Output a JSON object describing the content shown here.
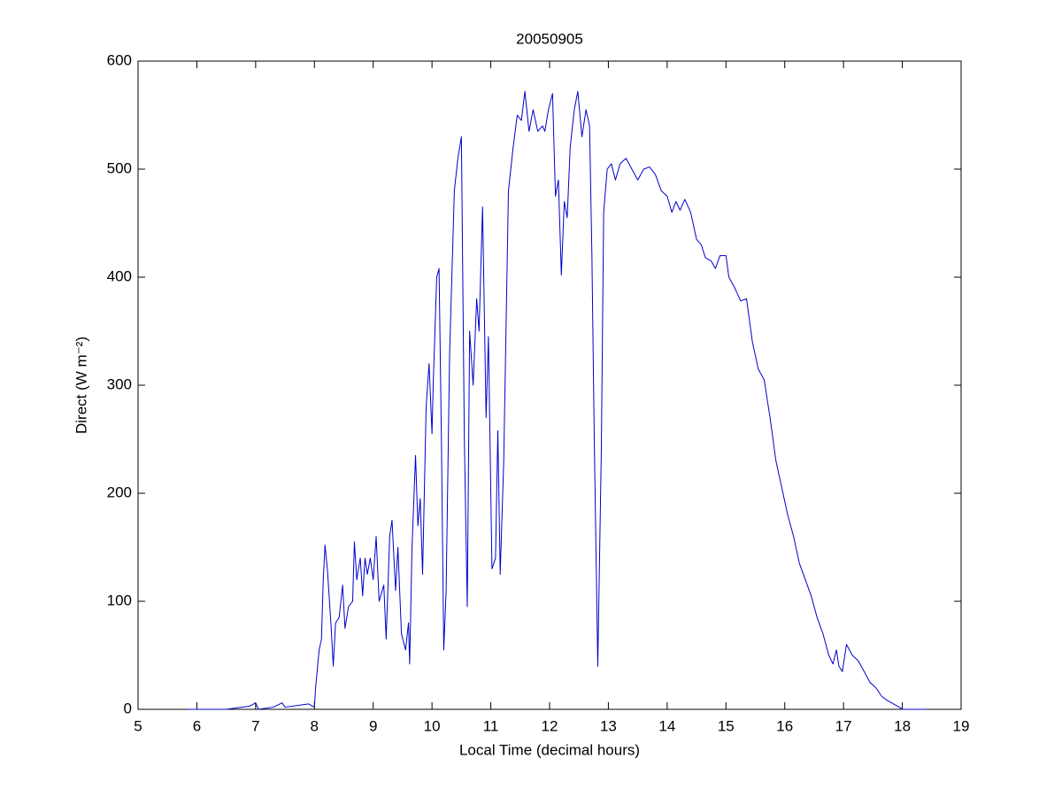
{
  "chart_data": {
    "type": "line",
    "title": "20050905",
    "xlabel": "Local Time (decimal hours)",
    "ylabel": "Direct (W m⁻²)",
    "xlim": [
      5,
      19
    ],
    "xticks": [
      5,
      6,
      7,
      8,
      9,
      10,
      11,
      12,
      13,
      14,
      15,
      16,
      17,
      18,
      19
    ],
    "ylim": [
      0,
      600
    ],
    "yticks": [
      0,
      100,
      200,
      300,
      400,
      500,
      600
    ],
    "grid": false,
    "x": [
      5.85,
      6.5,
      6.9,
      7.0,
      7.05,
      7.3,
      7.45,
      7.5,
      7.9,
      8.0,
      8.02,
      8.08,
      8.12,
      8.15,
      8.18,
      8.22,
      8.28,
      8.32,
      8.36,
      8.42,
      8.48,
      8.52,
      8.58,
      8.65,
      8.68,
      8.72,
      8.78,
      8.82,
      8.86,
      8.9,
      8.95,
      9.0,
      9.05,
      9.1,
      9.18,
      9.22,
      9.28,
      9.32,
      9.38,
      9.42,
      9.48,
      9.55,
      9.6,
      9.62,
      9.66,
      9.72,
      9.76,
      9.8,
      9.84,
      9.9,
      9.95,
      10.0,
      10.02,
      10.08,
      10.12,
      10.16,
      10.2,
      10.24,
      10.3,
      10.38,
      10.44,
      10.5,
      10.55,
      10.6,
      10.64,
      10.7,
      10.76,
      10.8,
      10.86,
      10.92,
      10.96,
      11.02,
      11.08,
      11.12,
      11.16,
      11.22,
      11.3,
      11.38,
      11.45,
      11.52,
      11.58,
      11.65,
      11.72,
      11.8,
      11.88,
      11.92,
      11.98,
      12.05,
      12.1,
      12.15,
      12.2,
      12.25,
      12.3,
      12.35,
      12.42,
      12.48,
      12.55,
      12.62,
      12.68,
      12.72,
      12.76,
      12.82,
      12.88,
      12.92,
      12.98,
      13.05,
      13.12,
      13.2,
      13.3,
      13.4,
      13.5,
      13.6,
      13.7,
      13.8,
      13.9,
      14.0,
      14.08,
      14.15,
      14.22,
      14.3,
      14.4,
      14.5,
      14.58,
      14.65,
      14.75,
      14.82,
      14.9,
      15.0,
      15.05,
      15.15,
      15.25,
      15.35,
      15.45,
      15.55,
      15.65,
      15.75,
      15.85,
      15.95,
      16.05,
      16.15,
      16.25,
      16.35,
      16.45,
      16.55,
      16.65,
      16.75,
      16.82,
      16.88,
      16.92,
      16.98,
      17.05,
      17.15,
      17.25,
      17.35,
      17.45,
      17.55,
      17.65,
      17.75,
      17.85,
      17.95,
      18.0,
      18.4
    ],
    "series": [
      {
        "color": "#0000cc",
        "values": [
          0,
          0,
          3,
          6,
          0,
          2,
          6,
          2,
          5,
          2,
          20,
          55,
          65,
          120,
          152,
          130,
          80,
          40,
          80,
          85,
          115,
          75,
          95,
          100,
          155,
          120,
          140,
          105,
          140,
          125,
          140,
          120,
          160,
          100,
          115,
          65,
          160,
          175,
          110,
          150,
          70,
          55,
          80,
          42,
          150,
          235,
          170,
          195,
          125,
          280,
          320,
          255,
          300,
          400,
          408,
          250,
          55,
          110,
          330,
          480,
          510,
          530,
          250,
          95,
          350,
          300,
          380,
          350,
          465,
          270,
          345,
          130,
          140,
          258,
          125,
          230,
          480,
          520,
          550,
          545,
          572,
          535,
          555,
          535,
          540,
          535,
          555,
          570,
          475,
          490,
          402,
          470,
          455,
          520,
          555,
          572,
          530,
          555,
          540,
          420,
          250,
          40,
          240,
          460,
          500,
          505,
          490,
          505,
          510,
          500,
          490,
          500,
          502,
          495,
          480,
          475,
          460,
          470,
          462,
          472,
          460,
          435,
          430,
          418,
          415,
          408,
          420,
          420,
          400,
          390,
          378,
          380,
          340,
          315,
          305,
          270,
          230,
          205,
          180,
          160,
          135,
          120,
          105,
          85,
          70,
          50,
          42,
          55,
          40,
          35,
          60,
          50,
          45,
          35,
          25,
          20,
          12,
          8,
          5,
          2,
          0,
          0
        ]
      }
    ]
  }
}
